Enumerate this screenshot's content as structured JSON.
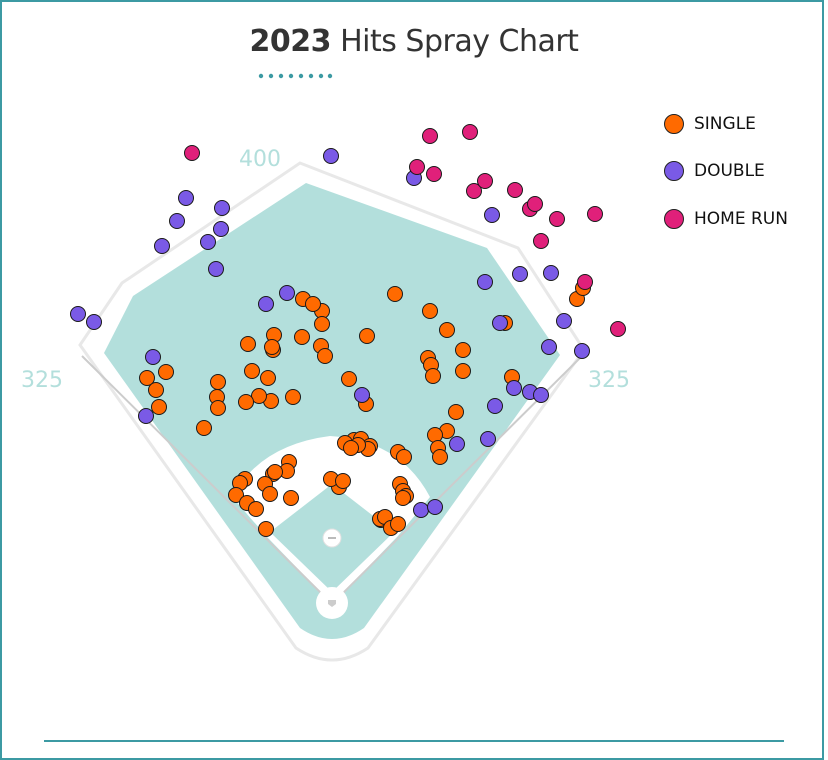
{
  "title": {
    "year": "2023",
    "rest": " Hits Spray Chart"
  },
  "colors": {
    "frame": "#3c9aa3",
    "accent_dots": "#3c9aa3",
    "field": "#b3dfdc",
    "warning_track": "#ffffff",
    "foul_line": "#cccccc",
    "distance_label": "#b3dfdc"
  },
  "field_labels": {
    "center": "400",
    "left": "325",
    "right": "325"
  },
  "chart_data": {
    "type": "scatter",
    "title": "2023 Hits Spray Chart",
    "legend_position": "top-right",
    "series": [
      {
        "name": "SINGLE",
        "color": "#ff6a00",
        "points": [
          [
            395,
            294
          ],
          [
            430,
            311
          ],
          [
            447,
            330
          ],
          [
            367,
            336
          ],
          [
            322,
            311
          ],
          [
            303,
            299
          ],
          [
            313,
            304
          ],
          [
            322,
            324
          ],
          [
            302,
            337
          ],
          [
            321,
            346
          ],
          [
            325,
            356
          ],
          [
            274,
            335
          ],
          [
            273,
            350
          ],
          [
            272,
            347
          ],
          [
            248,
            344
          ],
          [
            252,
            371
          ],
          [
            268,
            378
          ],
          [
            271,
            401
          ],
          [
            259,
            396
          ],
          [
            246,
            402
          ],
          [
            218,
            382
          ],
          [
            217,
            397
          ],
          [
            218,
            408
          ],
          [
            147,
            378
          ],
          [
            166,
            372
          ],
          [
            156,
            390
          ],
          [
            159,
            407
          ],
          [
            204,
            428
          ],
          [
            293,
            397
          ],
          [
            349,
            379
          ],
          [
            366,
            404
          ],
          [
            428,
            358
          ],
          [
            431,
            365
          ],
          [
            433,
            376
          ],
          [
            463,
            350
          ],
          [
            463,
            371
          ],
          [
            505,
            323
          ],
          [
            512,
            377
          ],
          [
            456,
            412
          ],
          [
            447,
            431
          ],
          [
            435,
            435
          ],
          [
            438,
            448
          ],
          [
            440,
            457
          ],
          [
            354,
            440
          ],
          [
            345,
            443
          ],
          [
            361,
            439
          ],
          [
            370,
            446
          ],
          [
            368,
            449
          ],
          [
            358,
            445
          ],
          [
            351,
            448
          ],
          [
            398,
            452
          ],
          [
            404,
            457
          ],
          [
            339,
            487
          ],
          [
            331,
            479
          ],
          [
            343,
            481
          ],
          [
            289,
            462
          ],
          [
            287,
            471
          ],
          [
            273,
            474
          ],
          [
            275,
            472
          ],
          [
            265,
            484
          ],
          [
            245,
            479
          ],
          [
            240,
            483
          ],
          [
            236,
            495
          ],
          [
            247,
            503
          ],
          [
            256,
            509
          ],
          [
            270,
            494
          ],
          [
            291,
            498
          ],
          [
            266,
            529
          ],
          [
            400,
            484
          ],
          [
            403,
            491
          ],
          [
            406,
            496
          ],
          [
            403,
            498
          ],
          [
            381,
            520
          ],
          [
            380,
            519
          ],
          [
            385,
            517
          ],
          [
            391,
            528
          ],
          [
            398,
            524
          ],
          [
            577,
            299
          ],
          [
            583,
            288
          ]
        ]
      },
      {
        "name": "DOUBLE",
        "color": "#7a5ae6",
        "points": [
          [
            331,
            156
          ],
          [
            186,
            198
          ],
          [
            222,
            208
          ],
          [
            177,
            221
          ],
          [
            221,
            229
          ],
          [
            208,
            242
          ],
          [
            162,
            246
          ],
          [
            216,
            269
          ],
          [
            266,
            304
          ],
          [
            287,
            293
          ],
          [
            78,
            314
          ],
          [
            94,
            322
          ],
          [
            153,
            357
          ],
          [
            146,
            416
          ],
          [
            414,
            178
          ],
          [
            492,
            215
          ],
          [
            520,
            274
          ],
          [
            551,
            273
          ],
          [
            485,
            282
          ],
          [
            500,
            323
          ],
          [
            564,
            321
          ],
          [
            549,
            347
          ],
          [
            582,
            351
          ],
          [
            514,
            388
          ],
          [
            530,
            392
          ],
          [
            541,
            395
          ],
          [
            495,
            406
          ],
          [
            488,
            439
          ],
          [
            457,
            444
          ],
          [
            362,
            395
          ],
          [
            421,
            510
          ],
          [
            435,
            507
          ]
        ]
      },
      {
        "name": "HOME RUN",
        "color": "#e0207a",
        "points": [
          [
            192,
            153
          ],
          [
            430,
            136
          ],
          [
            470,
            132
          ],
          [
            417,
            167
          ],
          [
            434,
            174
          ],
          [
            474,
            191
          ],
          [
            485,
            181
          ],
          [
            515,
            190
          ],
          [
            530,
            209
          ],
          [
            535,
            204
          ],
          [
            557,
            219
          ],
          [
            595,
            214
          ],
          [
            541,
            241
          ],
          [
            585,
            282
          ],
          [
            618,
            329
          ]
        ]
      }
    ]
  }
}
